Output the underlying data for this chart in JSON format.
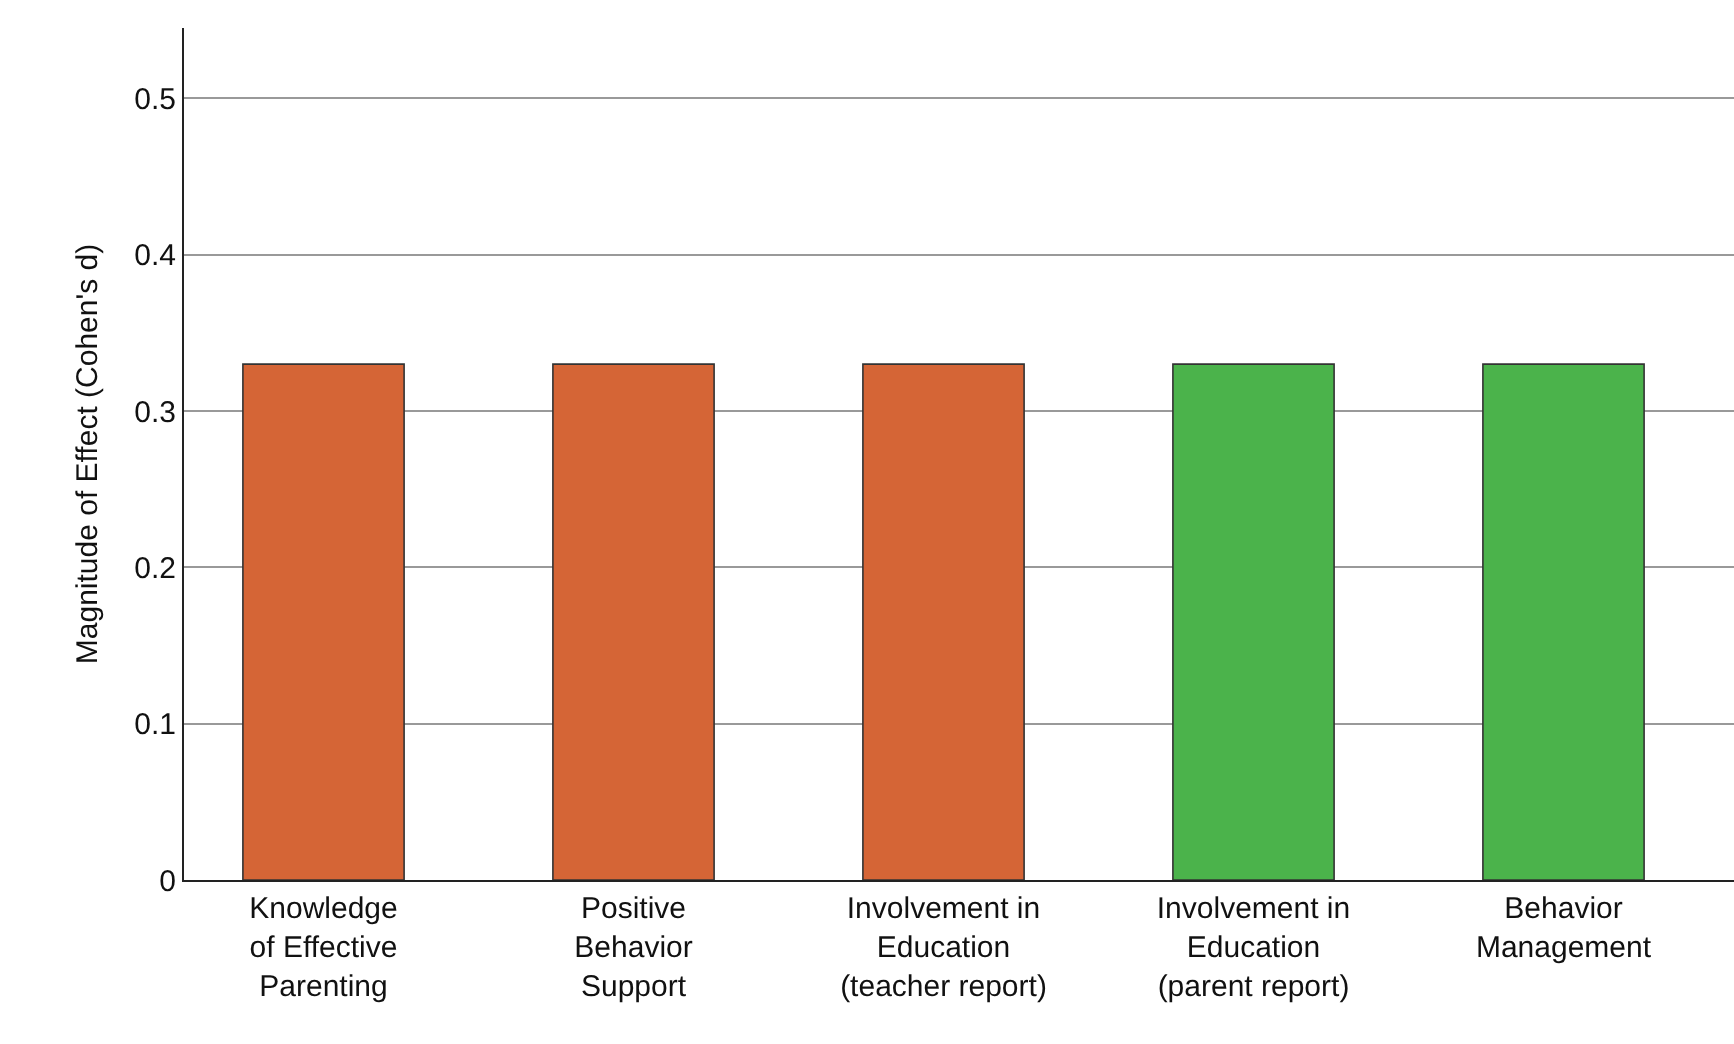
{
  "chart_data": {
    "type": "bar",
    "ylabel": "Magnitude of Effect (Cohen's d)",
    "categories": [
      "Knowledge\nof Effective\nParenting",
      "Positive\nBehavior\nSupport",
      "Involvement in\nEducation\n(teacher report)",
      "Involvement in\nEducation\n(parent report)",
      "Behavior\nManagement"
    ],
    "values": [
      0.33,
      0.33,
      0.33,
      0.33,
      0.33
    ],
    "colors": [
      "#d56536",
      "#d56536",
      "#d56536",
      "#4bb34b",
      "#4bb34b"
    ],
    "ylim": [
      0,
      0.545
    ],
    "yticks": [
      0,
      0.1,
      0.2,
      0.3,
      0.4,
      0.5
    ],
    "grid": "y"
  }
}
